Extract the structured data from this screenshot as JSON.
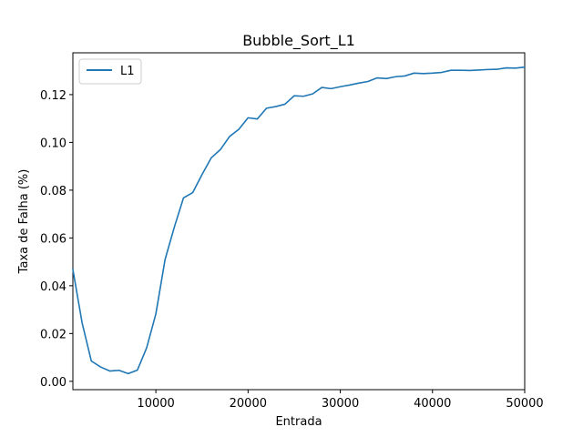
{
  "chart_data": {
    "type": "line",
    "title": "Bubble_Sort_L1",
    "xlabel": "Entrada",
    "ylabel": "Taxa de Falha (%)",
    "xlim": [
      1000,
      50000
    ],
    "ylim": [
      -0.0035,
      0.1375
    ],
    "xticks": [
      10000,
      20000,
      30000,
      40000,
      50000
    ],
    "xtick_labels": [
      "10000",
      "20000",
      "30000",
      "40000",
      "50000"
    ],
    "yticks": [
      0.0,
      0.02,
      0.04,
      0.06,
      0.08,
      0.1,
      0.12
    ],
    "ytick_labels": [
      "0.00",
      "0.02",
      "0.04",
      "0.06",
      "0.08",
      "0.10",
      "0.12"
    ],
    "grid": false,
    "legend_position": "top-left",
    "series": [
      {
        "name": "L1",
        "color": "#1f77b4",
        "x": [
          1000,
          2000,
          3000,
          4000,
          5000,
          6000,
          7000,
          8000,
          9000,
          10000,
          11000,
          12000,
          13000,
          14000,
          15000,
          16000,
          17000,
          18000,
          19000,
          20000,
          21000,
          22000,
          23000,
          24000,
          25000,
          26000,
          27000,
          28000,
          29000,
          30000,
          31000,
          32000,
          33000,
          34000,
          35000,
          36000,
          37000,
          38000,
          39000,
          40000,
          41000,
          42000,
          43000,
          44000,
          45000,
          46000,
          47000,
          48000,
          49000,
          50000
        ],
        "y": [
          0.0468,
          0.0245,
          0.0085,
          0.006,
          0.0043,
          0.0046,
          0.0032,
          0.0047,
          0.014,
          0.0282,
          0.051,
          0.0645,
          0.0768,
          0.079,
          0.0865,
          0.0935,
          0.097,
          0.1025,
          0.1055,
          0.1103,
          0.1098,
          0.1143,
          0.115,
          0.116,
          0.1195,
          0.1193,
          0.1203,
          0.123,
          0.1225,
          0.1233,
          0.124,
          0.1248,
          0.1255,
          0.127,
          0.1267,
          0.1275,
          0.1278,
          0.129,
          0.1288,
          0.129,
          0.1293,
          0.1302,
          0.1302,
          0.1301,
          0.1303,
          0.1305,
          0.1306,
          0.1312,
          0.1311,
          0.1315
        ]
      }
    ]
  }
}
